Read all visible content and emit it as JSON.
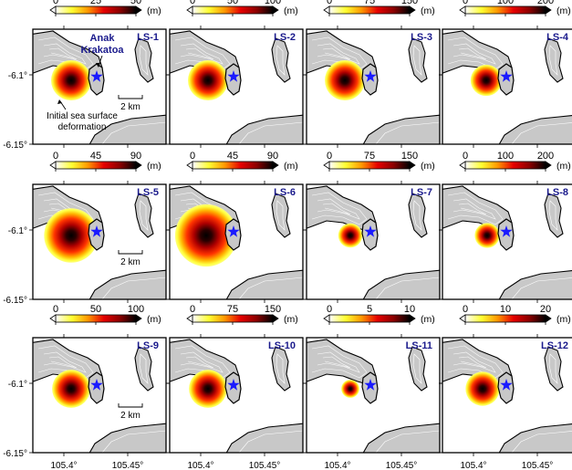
{
  "figure": {
    "unit_label": "(m)",
    "colormap": [
      "#ffffff",
      "#ffff33",
      "#ff9900",
      "#e60000",
      "#8b0000",
      "#000000"
    ],
    "frame_color": "#000000",
    "island_fill": "#c8c8c8",
    "island_stroke": "#000000",
    "contour_color": "#ffffff",
    "star_color": "#1a1aff",
    "label_color": "#1a1a8c",
    "y_ticks": [
      "-6.1°",
      "-6.15°"
    ],
    "x_ticks": [
      "105.4°",
      "105.45°"
    ],
    "annotations": {
      "volcano_name_line1": "Anak",
      "volcano_name_line2": "Krakatoa",
      "source_note_line1": "Initial sea surface",
      "source_note_line2": "deformation",
      "scale_bar": "2 km"
    }
  },
  "chart_data": [
    {
      "type": "heatmap",
      "title": "LS-1",
      "unit": "m",
      "colorbar_ticks": [
        0,
        25,
        50
      ],
      "colorbar_range": [
        0,
        50
      ],
      "source_size": 1.0,
      "source_offset": 0
    },
    {
      "type": "heatmap",
      "title": "LS-2",
      "unit": "m",
      "colorbar_ticks": [
        0,
        50,
        100
      ],
      "colorbar_range": [
        0,
        100
      ],
      "source_size": 1.0,
      "source_offset": 0
    },
    {
      "type": "heatmap",
      "title": "LS-3",
      "unit": "m",
      "colorbar_ticks": [
        0,
        75,
        150
      ],
      "colorbar_range": [
        0,
        150
      ],
      "source_size": 1.0,
      "source_offset": 0
    },
    {
      "type": "heatmap",
      "title": "LS-4",
      "unit": "m",
      "colorbar_ticks": [
        0,
        100,
        200
      ],
      "colorbar_range": [
        0,
        200
      ],
      "source_size": 0.78,
      "source_offset": 0.3
    },
    {
      "type": "heatmap",
      "title": "LS-5",
      "unit": "m",
      "colorbar_ticks": [
        0,
        45,
        90
      ],
      "colorbar_range": [
        0,
        90
      ],
      "source_size": 1.35,
      "source_offset": 0
    },
    {
      "type": "heatmap",
      "title": "LS-6",
      "unit": "m",
      "colorbar_ticks": [
        0,
        45,
        90
      ],
      "colorbar_range": [
        0,
        90
      ],
      "source_size": 1.55,
      "source_offset": -0.1
    },
    {
      "type": "heatmap",
      "title": "LS-7",
      "unit": "m",
      "colorbar_ticks": [
        0,
        75,
        150
      ],
      "colorbar_range": [
        0,
        150
      ],
      "source_size": 0.6,
      "source_offset": 0.3
    },
    {
      "type": "heatmap",
      "title": "LS-8",
      "unit": "m",
      "colorbar_ticks": [
        0,
        100,
        200
      ],
      "colorbar_range": [
        0,
        200
      ],
      "source_size": 0.62,
      "source_offset": 0.35
    },
    {
      "type": "heatmap",
      "title": "LS-9",
      "unit": "m",
      "colorbar_ticks": [
        0,
        50,
        100
      ],
      "colorbar_range": [
        0,
        100
      ],
      "source_size": 0.95,
      "source_offset": 0
    },
    {
      "type": "heatmap",
      "title": "LS-10",
      "unit": "m",
      "colorbar_ticks": [
        0,
        75,
        150
      ],
      "colorbar_range": [
        0,
        150
      ],
      "source_size": 0.95,
      "source_offset": 0
    },
    {
      "type": "heatmap",
      "title": "LS-11",
      "unit": "m",
      "colorbar_ticks": [
        0,
        5,
        10
      ],
      "colorbar_range": [
        0,
        10
      ],
      "source_size": 0.45,
      "source_offset": 0.3
    },
    {
      "type": "heatmap",
      "title": "LS-12",
      "unit": "m",
      "colorbar_ticks": [
        0,
        10,
        20
      ],
      "colorbar_range": [
        0,
        20
      ],
      "source_size": 0.85,
      "source_offset": 0.1
    }
  ]
}
